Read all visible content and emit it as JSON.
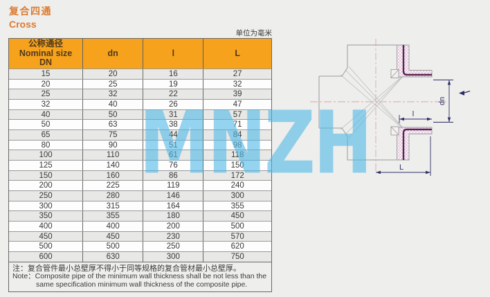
{
  "colors": {
    "bg": "#eeeeec",
    "accent": "#dd7b31",
    "header_bg": "#f7a21c",
    "header_text": "#4f3a1d",
    "row_alt": "#e8e8e6",
    "watermark": "rgba(80,185,232,0.6)",
    "outline": "#9b9b9b",
    "fanline": "#b8b8b8",
    "centerline": "#e0a6a6",
    "hatch": "#d9b3cf",
    "layer": "#5d2452",
    "dim": "#2e2e66"
  },
  "header": {
    "title_zh": "复合四通",
    "title_en": "Cross",
    "units": "单位为毫米"
  },
  "table": {
    "columns": {
      "c1_line1": "公称通径",
      "c1_line2": "Nominal size",
      "c1_line3": "DN",
      "c2": "dn",
      "c3": "l",
      "c4": "L"
    },
    "rows": [
      [
        15,
        20,
        16,
        27
      ],
      [
        20,
        25,
        19,
        32
      ],
      [
        25,
        32,
        22,
        39
      ],
      [
        32,
        40,
        26,
        47
      ],
      [
        40,
        50,
        31,
        57
      ],
      [
        50,
        63,
        38,
        71
      ],
      [
        65,
        75,
        44,
        84
      ],
      [
        80,
        90,
        51,
        98
      ],
      [
        100,
        110,
        61,
        118
      ],
      [
        125,
        140,
        76,
        150
      ],
      [
        150,
        160,
        86,
        172
      ],
      [
        200,
        225,
        119,
        240
      ],
      [
        250,
        280,
        146,
        300
      ],
      [
        300,
        315,
        164,
        355
      ],
      [
        350,
        355,
        180,
        450
      ],
      [
        400,
        400,
        200,
        500
      ],
      [
        450,
        450,
        230,
        570
      ],
      [
        500,
        500,
        250,
        620
      ],
      [
        600,
        630,
        300,
        750
      ]
    ]
  },
  "note": {
    "zh": "注：复合管件最小总壁厚不得小于同等规格的复合管材最小总壁厚。",
    "en1": "Note：Composite pipe of the minimum wall thickness shall be not less than the",
    "en2": "same specification minimum wall thickness of the composite pipe."
  },
  "watermark": {
    "text": "MNZH"
  },
  "diagram": {
    "labels": {
      "dn": "dn",
      "l": "l",
      "L": "L"
    }
  }
}
